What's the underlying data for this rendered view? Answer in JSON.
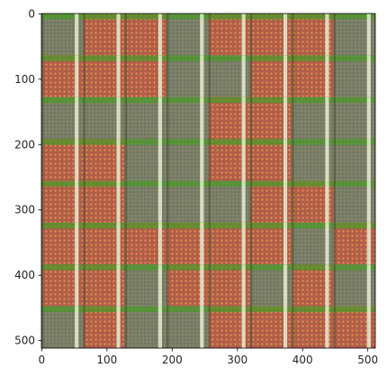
{
  "chart_data": {
    "type": "heatmap",
    "title": "",
    "xlabel": "",
    "ylabel": "",
    "xlim": [
      0,
      512
    ],
    "ylim": [
      512,
      0
    ],
    "x_ticks": [
      0,
      100,
      200,
      300,
      400,
      500
    ],
    "y_ticks": [
      0,
      100,
      200,
      300,
      400,
      500
    ],
    "grid": false,
    "image": {
      "width": 512,
      "height": 512,
      "rows": 8,
      "cols": 8,
      "tile_size": 64,
      "tile_pattern": [
        [
          "green",
          "red",
          "red",
          "green",
          "red",
          "red",
          "red",
          "green"
        ],
        [
          "red",
          "red",
          "red",
          "green",
          "green",
          "red",
          "red",
          "green"
        ],
        [
          "green",
          "green",
          "green",
          "green",
          "red",
          "red",
          "green",
          "green"
        ],
        [
          "red",
          "red",
          "green",
          "green",
          "red",
          "red",
          "green",
          "green"
        ],
        [
          "red",
          "red",
          "green",
          "green",
          "green",
          "red",
          "red",
          "green"
        ],
        [
          "red",
          "red",
          "red",
          "red",
          "red",
          "red",
          "green",
          "red"
        ],
        [
          "red",
          "red",
          "green",
          "red",
          "red",
          "green",
          "red",
          "green"
        ],
        [
          "green",
          "red",
          "green",
          "green",
          "red",
          "red",
          "red",
          "red"
        ]
      ],
      "colors": {
        "green": "#7b7d6c",
        "red": "#b85a4a",
        "stripe": "#e8ecd2",
        "grid_top": "#4c9a2a",
        "yellow_dot": "#e8c73a"
      }
    }
  }
}
